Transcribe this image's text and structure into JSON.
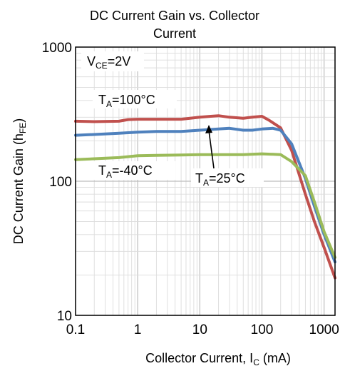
{
  "chart_data": {
    "type": "line",
    "title_line1": "DC Current Gain vs. Collector",
    "title_line2": "Current",
    "xlabel_main": "Collector Current, I",
    "xlabel_sub": "C",
    "xlabel_unit": " (mA)",
    "ylabel_main": "DC Current Gain (h",
    "ylabel_sub": "FE",
    "ylabel_end": ")",
    "x_scale": "log",
    "y_scale": "log",
    "xlim": [
      0.1,
      1500
    ],
    "ylim": [
      10,
      1000
    ],
    "x_ticks": [
      "0.1",
      "1",
      "10",
      "100",
      "1000"
    ],
    "y_ticks": [
      "10",
      "100",
      "1000"
    ],
    "grid": true,
    "condition": {
      "main": "V",
      "sub": "CE",
      "rest": "=2V"
    },
    "series": [
      {
        "name_main": "T",
        "name_sub": "A",
        "name_rest": "=100°C",
        "color": "#c0504d",
        "x": [
          0.1,
          0.2,
          0.5,
          0.7,
          1,
          2,
          5,
          10,
          15,
          20,
          30,
          50,
          70,
          100,
          130,
          200,
          300,
          500,
          700,
          1000,
          1500
        ],
        "y": [
          280,
          278,
          280,
          288,
          290,
          290,
          290,
          300,
          305,
          308,
          300,
          295,
          300,
          305,
          285,
          250,
          170,
          80,
          50,
          32,
          19
        ]
      },
      {
        "name_main": "T",
        "name_sub": "A",
        "name_rest": "=25°C",
        "color": "#4f81bd",
        "x": [
          0.1,
          0.2,
          0.5,
          1,
          2,
          5,
          10,
          20,
          30,
          50,
          70,
          100,
          150,
          200,
          300,
          500,
          700,
          1000,
          1500
        ],
        "y": [
          220,
          223,
          228,
          232,
          235,
          235,
          240,
          245,
          248,
          240,
          240,
          245,
          248,
          240,
          190,
          105,
          65,
          40,
          25
        ]
      },
      {
        "name_main": "T",
        "name_sub": "A",
        "name_rest": "=-40°C",
        "color": "#9bbb59",
        "x": [
          0.1,
          0.2,
          0.5,
          1,
          2,
          5,
          10,
          20,
          50,
          100,
          200,
          300,
          500,
          700,
          1000,
          1500
        ],
        "y": [
          145,
          147,
          150,
          155,
          156,
          157,
          158,
          158,
          158,
          160,
          158,
          140,
          110,
          70,
          42,
          27
        ]
      }
    ]
  }
}
